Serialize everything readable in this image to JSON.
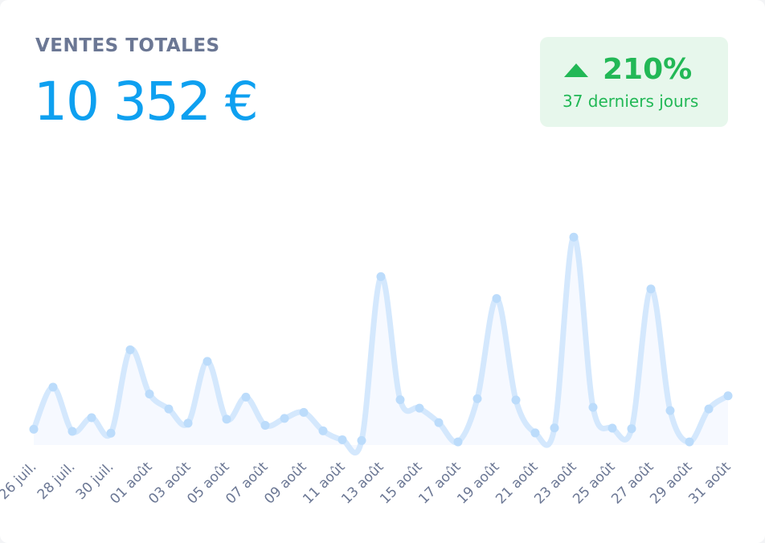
{
  "card": {
    "title": "VENTES TOTALES",
    "total": "10 352 €",
    "badge": {
      "change": "210%",
      "period": "37 derniers jours",
      "icon": "triangle-up-icon",
      "color": "#22b856"
    }
  },
  "chart_data": {
    "type": "area",
    "x": [
      "26 juil.",
      "27 juil.",
      "28 juil.",
      "29 juil.",
      "30 juil.",
      "31 juil.",
      "01 août",
      "02 août",
      "03 août",
      "04 août",
      "05 août",
      "06 août",
      "07 août",
      "08 août",
      "09 août",
      "10 août",
      "11 août",
      "12 août",
      "13 août",
      "14 août",
      "15 août",
      "16 août",
      "17 août",
      "18 août",
      "19 août",
      "20 août",
      "21 août",
      "22 août",
      "23 août",
      "24 août",
      "25 août",
      "26 août",
      "27 août",
      "28 août",
      "29 août",
      "30 août",
      "31 août"
    ],
    "tick_labels": [
      "26 juil.",
      "28 juil.",
      "30 juil.",
      "01 août",
      "03 août",
      "05 août",
      "07 août",
      "09 août",
      "11 août",
      "13 août",
      "15 août",
      "17 août",
      "19 août",
      "21 août",
      "23 août",
      "25 août",
      "27 août",
      "29 août",
      "31 août"
    ],
    "values": [
      60,
      220,
      52,
      104,
      45,
      362,
      194,
      137,
      83,
      318,
      98,
      182,
      75,
      101,
      124,
      54,
      20,
      17,
      640,
      172,
      140,
      85,
      12,
      176,
      557,
      171,
      46,
      65,
      790,
      143,
      64,
      62,
      593,
      131,
      12,
      137,
      187
    ],
    "ylim": [
      0,
      800
    ],
    "line_color": "#d4e8fd",
    "fill_color": "#f6f9ff",
    "grid": false,
    "legend": "none"
  }
}
